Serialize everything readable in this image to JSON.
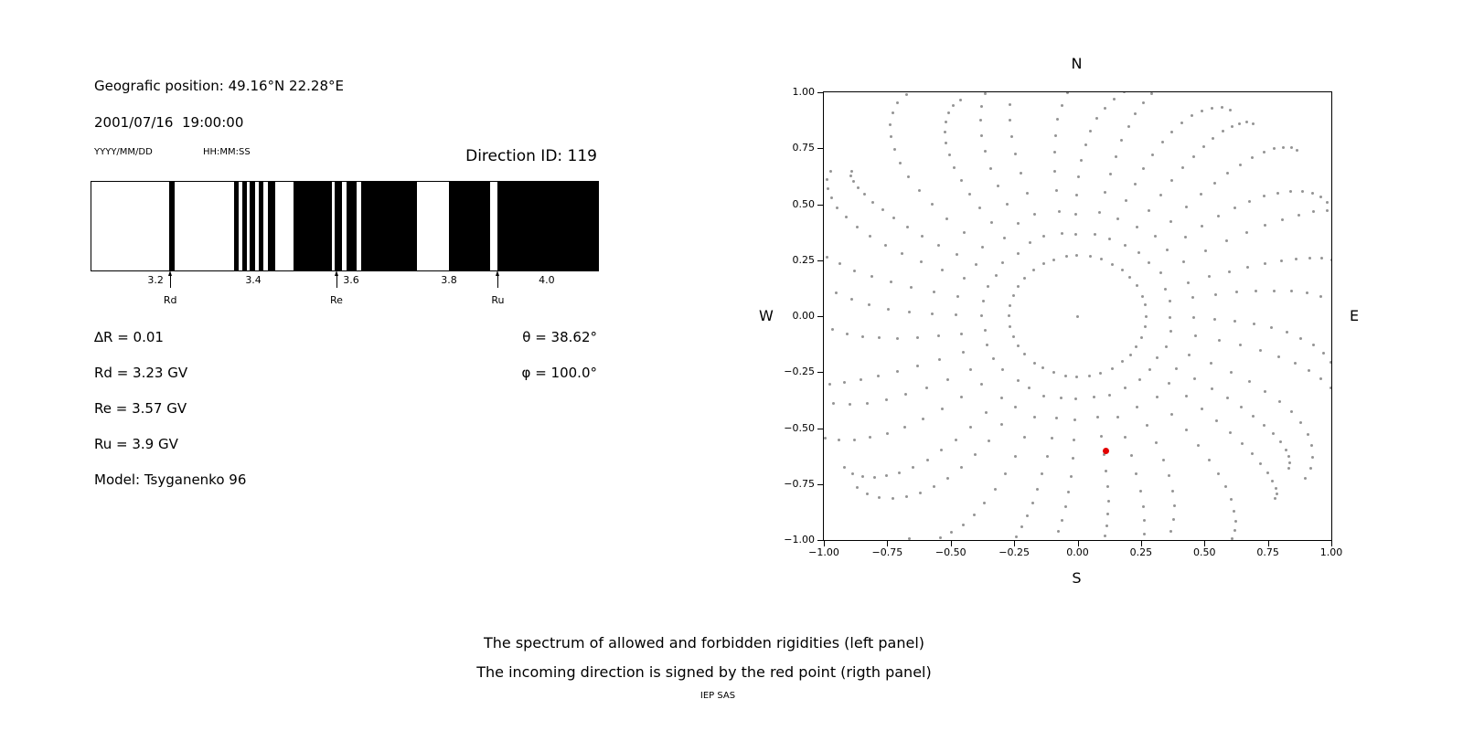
{
  "colors": {
    "text": "#000000",
    "band": "#000000",
    "frame": "#000000",
    "grid_dot": "#949494",
    "red_point": "#e30000",
    "background": "#ffffff"
  },
  "left_panel": {
    "position_label": "Geografic position: 49.16°N 22.28°E",
    "datetime": "2001/07/16  19:00:00",
    "date_format_label": "YYYY/MM/DD",
    "time_format_label": "HH:MM:SS",
    "direction_id_label": "Direction ID: 119",
    "params": [
      "∆R = 0.01",
      "Rd = 3.23 GV",
      "Re = 3.57 GV",
      "Ru = 3.9 GV",
      "Model: Tsyganenko 96"
    ],
    "angle_params": [
      "θ = 38.62°",
      "φ = 100.0°"
    ]
  },
  "caption": {
    "line1": "The spectrum of allowed and forbidden rigidities (left panel)",
    "line2": "The incoming direction is signed by the red point (rigth panel)",
    "credit": "IEP SAS"
  },
  "chart_data": [
    {
      "type": "bar",
      "name": "rigidity-spectrum",
      "description": "Binary spectrum: black bands = one state of allowed/forbidden rigidities, white = the other",
      "x_range_gv": [
        3.067,
        4.103
      ],
      "x_ticks": [
        3.2,
        3.4,
        3.6,
        3.8,
        4.0
      ],
      "x_tick_labels": [
        "3.2",
        "3.4",
        "3.6",
        "3.8",
        "4.0"
      ],
      "black_bands_gv": [
        [
          3.226,
          3.237
        ],
        [
          3.358,
          3.368
        ],
        [
          3.375,
          3.384
        ],
        [
          3.391,
          3.401
        ],
        [
          3.409,
          3.418
        ],
        [
          3.428,
          3.442
        ],
        [
          3.48,
          3.558
        ],
        [
          3.565,
          3.58
        ],
        [
          3.589,
          3.61
        ],
        [
          3.618,
          3.733
        ],
        [
          3.798,
          3.882
        ],
        [
          3.897,
          4.103
        ]
      ],
      "markers": [
        {
          "label": "Rd",
          "value_gv": 3.23
        },
        {
          "label": "Re",
          "value_gv": 3.57
        },
        {
          "label": "Ru",
          "value_gv": 3.9
        }
      ],
      "values": {
        "delta_r_gv": 0.01,
        "rd_gv": 3.23,
        "re_gv": 3.57,
        "ru_gv": 3.9,
        "theta_deg": 38.62,
        "phi_deg": 100.0,
        "model": "Tsyganenko 96",
        "direction_id": 119
      }
    },
    {
      "type": "scatter",
      "name": "incoming-direction-plot",
      "xlim": [
        -1,
        1
      ],
      "ylim": [
        -1,
        1
      ],
      "x_tick_labels": [
        "−1.00",
        "−0.75",
        "−0.50",
        "−0.25",
        "0.00",
        "0.25",
        "0.50",
        "0.75",
        "1.00"
      ],
      "y_tick_labels": [
        "1.00",
        "0.75",
        "0.50",
        "0.25",
        "0.00",
        "−0.25",
        "−0.50",
        "−0.75",
        "−1.00"
      ],
      "direction_labels": {
        "top": "N",
        "bottom": "S",
        "left": "W",
        "right": "E"
      },
      "red_point": {
        "x": 0.11,
        "y": -0.6
      },
      "center_dot": {
        "x": 0,
        "y": 0
      },
      "spokes": {
        "count": 36,
        "points_per_spoke": 15,
        "r_min": 0.27,
        "r_max": 1.16,
        "curvature_rad": 0.22,
        "seed": 7
      }
    }
  ]
}
